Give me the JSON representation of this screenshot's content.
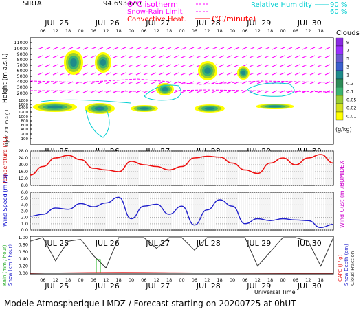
{
  "header": {
    "site": "SIRTA",
    "value": "94.69347O",
    "isotherm_label": "O°C isotherm",
    "snow_rain_label": "Snow-Rain Limit",
    "convective_label": "Convective Heat.",
    "convective_unit": "(°C/minute)",
    "rh_label": "Relative Humidity",
    "rh_90": "90 %",
    "rh_60": "60 %"
  },
  "days": [
    "JUL 25",
    "JUL 26",
    "JUL 27",
    "JUL 28",
    "JUL 29",
    "JUL 30"
  ],
  "hour_ticks": [
    "06",
    "12",
    "18",
    "00",
    "06",
    "12",
    "18",
    "00",
    "06",
    "12",
    "18",
    "00",
    "06",
    "12",
    "18",
    "00",
    "06",
    "12",
    "18",
    "00",
    "06",
    "12",
    "18"
  ],
  "cloud_panel": {
    "ylabel_top": "Height (m a.s.l.)",
    "ylabel_bottom": "Up to 200 m a.g.l.",
    "yticks_km": [
      "11000",
      "10000",
      "9000",
      "8000",
      "7000",
      "6000",
      "5000",
      "4000",
      "3000",
      "2000",
      "1800",
      "1600",
      "1400",
      "1200",
      "1000",
      "800",
      "600",
      "400",
      "200",
      "100"
    ],
    "legend_title": "Clouds",
    "legend_levels": [
      "9",
      "7",
      "5",
      "3",
      "1",
      "0.2",
      "0.1",
      "0.05",
      "0.02",
      "0.01"
    ],
    "legend_unit": "(g/kg)",
    "colors": {
      "purple": "#9b30ff",
      "blue": "#3a5fcd",
      "teal": "#1e8b8b",
      "green": "#3cb371",
      "lime": "#9acd32",
      "yellow": "#ffff00",
      "cyan": "#00ced1",
      "magenta": "#ff00ff"
    }
  },
  "temp_panel": {
    "ylabel": "Temperature (°C)",
    "ylabel_right": "HUMIDEX",
    "yticks": [
      "28.0",
      "24.0",
      "20.0",
      "16.0",
      "12.0",
      "8.0"
    ]
  },
  "wind_panel": {
    "ylabel": "Wind Speed (m / s)",
    "ylabel_right": "Wind Gust (m / s)",
    "yticks": [
      "6.0",
      "5.0",
      "4.0",
      "3.0",
      "2.0",
      "1.0",
      "0.0"
    ]
  },
  "rain_panel": {
    "ylabel_left_rain": "Rain (mm / hour)",
    "ylabel_left_snow": "Snow (cm / hour)",
    "yticks": [
      "1.00",
      "0.80",
      "0.60",
      "0.40",
      "0.20",
      "0.00"
    ],
    "ylabel_right_cape": "CAPE (J / g)",
    "ylabel_right_snowdepth": "Snow Depth (cm)",
    "ylabel_right_cloud": "Cloud Fraction",
    "xlabel": "Universal Time"
  },
  "footer": "Modele Atmospherique LMDZ / Forecast starting on 20200725 at 0hUT",
  "chart_data": [
    {
      "type": "line",
      "title": "",
      "xlabel": "",
      "ylabel": "Temperature (°C)",
      "x_hours": [
        0,
        6,
        12,
        18,
        24,
        30,
        36,
        42,
        48,
        54,
        60,
        66,
        72,
        78,
        84,
        90,
        96,
        102,
        108,
        114,
        120,
        126,
        132,
        138,
        144
      ],
      "series": [
        {
          "name": "",
          "values": [
            14,
            19,
            24,
            25.5,
            23,
            18,
            17,
            16,
            22,
            20,
            19,
            17,
            19,
            24,
            25,
            24.5,
            21,
            17,
            15,
            21,
            24,
            20,
            24,
            26,
            21
          ]
        }
      ],
      "ylim": [
        8,
        28
      ]
    },
    {
      "type": "line",
      "title": "",
      "xlabel": "",
      "ylabel": "Wind Speed (m / s)",
      "x_hours": [
        0,
        6,
        12,
        18,
        24,
        30,
        36,
        42,
        48,
        54,
        60,
        66,
        72,
        78,
        84,
        90,
        96,
        102,
        108,
        114,
        120,
        126,
        132,
        138,
        144
      ],
      "series": [
        {
          "name": "",
          "values": [
            2.2,
            2.5,
            3.5,
            3.3,
            4.2,
            3.7,
            4.3,
            5.2,
            1.8,
            3.8,
            4.1,
            2.5,
            3.8,
            0.8,
            3.2,
            4.8,
            3.8,
            1.0,
            1.8,
            1.5,
            1.8,
            1.6,
            1.5,
            0.4,
            0.9
          ]
        }
      ],
      "ylim": [
        0,
        6
      ]
    },
    {
      "type": "line",
      "title": "",
      "xlabel": "Universal Time",
      "ylabel": "Cloud Fraction",
      "x_hours": [
        0,
        6,
        12,
        18,
        24,
        30,
        36,
        42,
        48,
        54,
        60,
        66,
        72,
        78,
        84,
        90,
        96,
        102,
        108,
        114,
        120,
        126,
        132,
        138,
        144
      ],
      "series": [
        {
          "name": "",
          "values": [
            0.9,
            1.0,
            0.35,
            0.9,
            0.95,
            0.5,
            0.15,
            1.0,
            1.0,
            1.0,
            0.7,
            1.0,
            1.0,
            0.65,
            1.0,
            1.0,
            1.0,
            1.0,
            0.2,
            0.6,
            1.0,
            1.0,
            0.9,
            0.2,
            1.0
          ]
        }
      ],
      "ylim": [
        0,
        1
      ]
    }
  ]
}
